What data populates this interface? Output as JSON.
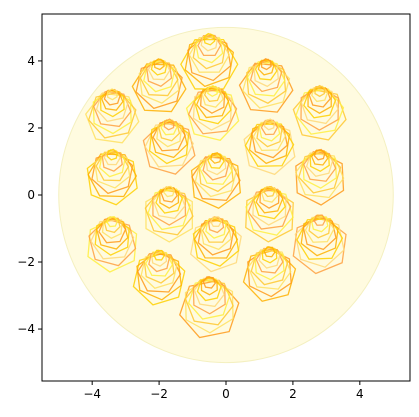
{
  "chart_data": {
    "type": "hexcells",
    "xlim": [
      -5.5,
      5.5
    ],
    "ylim": [
      -5.55,
      5.4
    ],
    "xticks": [
      {
        "value": -4,
        "label": "−4"
      },
      {
        "value": -2,
        "label": "−2"
      },
      0,
      2,
      4
    ],
    "yticks": [
      {
        "value": -4,
        "label": "−4"
      },
      {
        "value": -2,
        "label": "−2"
      },
      0,
      2,
      4
    ],
    "disk": {
      "x": 0,
      "y": 0,
      "r": 5,
      "color": "#fffbe0"
    },
    "colors": [
      "#ffd000",
      "#ffb000",
      "#ff9a1a",
      "#ffe060",
      "#ffc830",
      "#ffee40",
      "#ffa040",
      "#ffd878"
    ],
    "cells": [
      {
        "x": -0.5,
        "y": 3.9,
        "r": 0.85
      },
      {
        "x": -2.0,
        "y": 3.2,
        "r": 0.8
      },
      {
        "x": 1.2,
        "y": 3.2,
        "r": 0.8
      },
      {
        "x": -3.4,
        "y": 2.3,
        "r": 0.8
      },
      {
        "x": 2.8,
        "y": 2.4,
        "r": 0.8
      },
      {
        "x": -0.4,
        "y": 2.4,
        "r": 0.8
      },
      {
        "x": -1.7,
        "y": 1.4,
        "r": 0.8
      },
      {
        "x": 1.3,
        "y": 1.4,
        "r": 0.8
      },
      {
        "x": -3.4,
        "y": 0.5,
        "r": 0.8
      },
      {
        "x": -0.3,
        "y": 0.4,
        "r": 0.8
      },
      {
        "x": 2.8,
        "y": 0.5,
        "r": 0.8
      },
      {
        "x": -1.7,
        "y": -0.6,
        "r": 0.8
      },
      {
        "x": 1.3,
        "y": -0.6,
        "r": 0.8
      },
      {
        "x": -3.4,
        "y": -1.5,
        "r": 0.8
      },
      {
        "x": 2.8,
        "y": -1.5,
        "r": 0.85
      },
      {
        "x": -0.3,
        "y": -1.5,
        "r": 0.8
      },
      {
        "x": -2.0,
        "y": -2.5,
        "r": 0.8
      },
      {
        "x": 1.3,
        "y": -2.4,
        "r": 0.8
      },
      {
        "x": -0.5,
        "y": -3.4,
        "r": 0.9
      }
    ]
  }
}
